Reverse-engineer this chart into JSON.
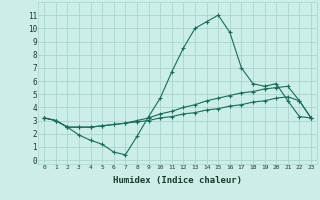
{
  "xlabel": "Humidex (Indice chaleur)",
  "x_ticks": [
    0,
    1,
    2,
    3,
    4,
    5,
    6,
    7,
    8,
    9,
    10,
    11,
    12,
    13,
    14,
    15,
    16,
    17,
    18,
    19,
    20,
    21,
    22,
    23
  ],
  "ylim": [
    -0.3,
    12
  ],
  "xlim": [
    -0.5,
    23.5
  ],
  "y_ticks": [
    0,
    1,
    2,
    3,
    4,
    5,
    6,
    7,
    8,
    9,
    10,
    11
  ],
  "background_color": "#cceee8",
  "grid_color": "#aad4cc",
  "line_color": "#1a6b5a",
  "line1_x": [
    0,
    1,
    2,
    3,
    4,
    5,
    6,
    7,
    8,
    9,
    10,
    11,
    12,
    13,
    14,
    15,
    16,
    17,
    18,
    19,
    20,
    21,
    22,
    23
  ],
  "line1_y": [
    3.2,
    3.0,
    2.5,
    1.9,
    1.5,
    1.2,
    0.6,
    0.4,
    1.8,
    3.3,
    4.7,
    6.7,
    8.5,
    10.0,
    10.5,
    11.0,
    9.7,
    7.0,
    5.8,
    5.6,
    5.8,
    4.5,
    3.3,
    3.2
  ],
  "line2_x": [
    0,
    1,
    2,
    3,
    4,
    5,
    6,
    7,
    8,
    9,
    10,
    11,
    12,
    13,
    14,
    15,
    16,
    17,
    18,
    19,
    20,
    21,
    22,
    23
  ],
  "line2_y": [
    3.2,
    3.0,
    2.5,
    2.5,
    2.5,
    2.6,
    2.7,
    2.8,
    3.0,
    3.2,
    3.5,
    3.7,
    4.0,
    4.2,
    4.5,
    4.7,
    4.9,
    5.1,
    5.2,
    5.4,
    5.5,
    5.6,
    4.5,
    3.2
  ],
  "line3_x": [
    0,
    1,
    2,
    3,
    4,
    5,
    6,
    7,
    8,
    9,
    10,
    11,
    12,
    13,
    14,
    15,
    16,
    17,
    18,
    19,
    20,
    21,
    22,
    23
  ],
  "line3_y": [
    3.2,
    3.0,
    2.5,
    2.5,
    2.5,
    2.6,
    2.7,
    2.8,
    2.9,
    3.0,
    3.2,
    3.3,
    3.5,
    3.6,
    3.8,
    3.9,
    4.1,
    4.2,
    4.4,
    4.5,
    4.7,
    4.8,
    4.5,
    3.2
  ]
}
